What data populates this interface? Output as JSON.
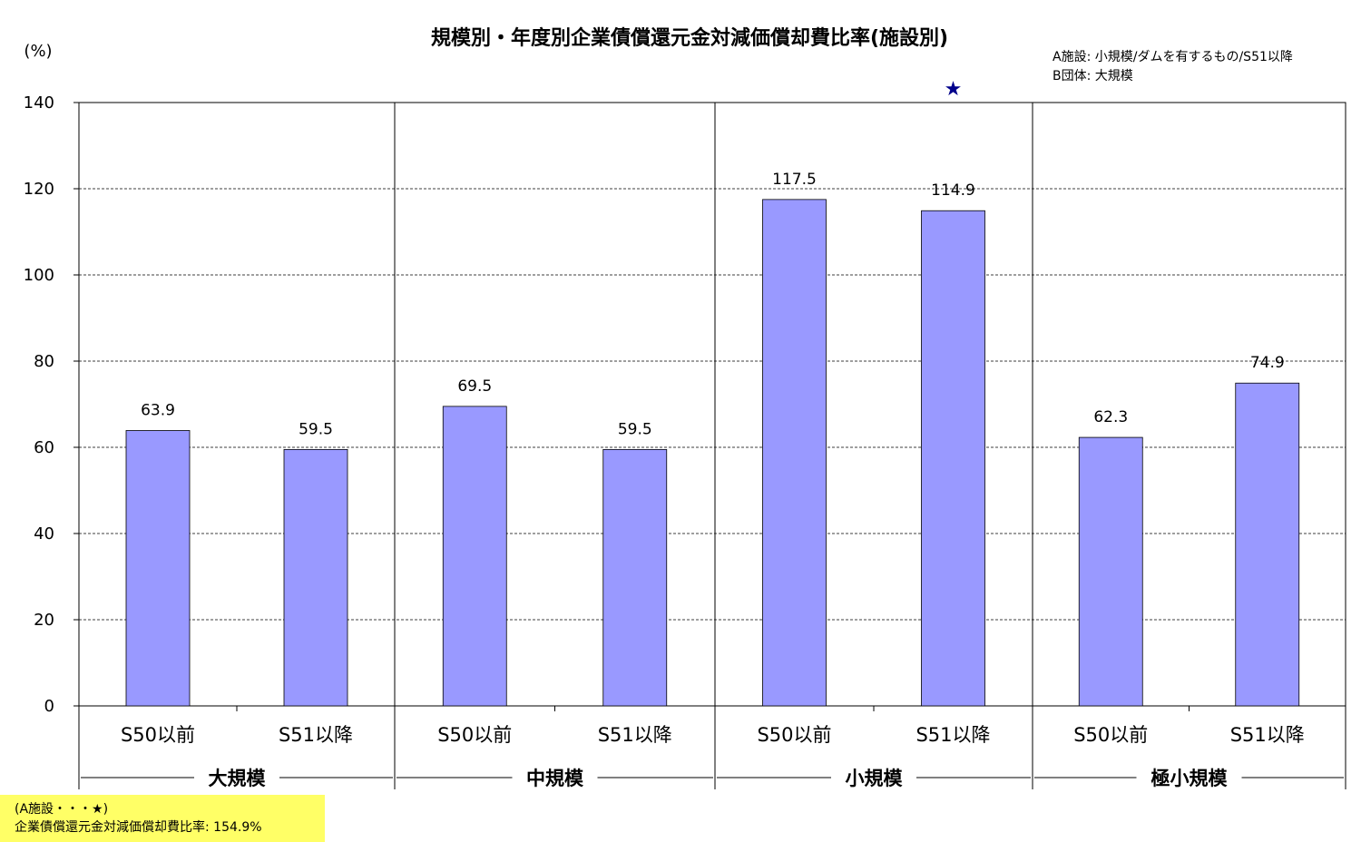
{
  "chart_data": {
    "type": "bar",
    "title": "規模別・年度別企業債償還元金対減価償却費比率(施設別)",
    "unit_label": "(%)",
    "ylim": [
      0,
      140
    ],
    "yticks": [
      "0",
      "20",
      "40",
      "60",
      "80",
      "100",
      "120",
      "140"
    ],
    "grid": true,
    "groups": [
      {
        "name": "大規模",
        "categories": [
          "S50以前",
          "S51以降"
        ],
        "values": [
          63.9,
          59.5
        ],
        "labels": [
          "63.9",
          "59.5"
        ]
      },
      {
        "name": "中規模",
        "categories": [
          "S50以前",
          "S51以降"
        ],
        "values": [
          69.5,
          59.5
        ],
        "labels": [
          "69.5",
          "59.5"
        ]
      },
      {
        "name": "小規模",
        "categories": [
          "S50以前",
          "S51以降"
        ],
        "values": [
          117.5,
          114.9
        ],
        "labels": [
          "117.5",
          "114.9"
        ]
      },
      {
        "name": "極小規模",
        "categories": [
          "S50以前",
          "S51以降"
        ],
        "values": [
          62.3,
          74.9
        ],
        "labels": [
          "62.3",
          "74.9"
        ]
      }
    ],
    "bar_color": "#9999ff",
    "marker": {
      "symbol": "★",
      "color": "#00008b",
      "group": 2,
      "bar": 1
    },
    "annotation_lines": [
      "A施設: 小規模/ダムを有するもの/S51以降",
      "B団体: 大規模"
    ]
  },
  "footnote": {
    "line1": "(A施設・・・★)",
    "line2": "企業債償還元金対減価償却費比率: 154.9%",
    "background": "#ffff66"
  }
}
